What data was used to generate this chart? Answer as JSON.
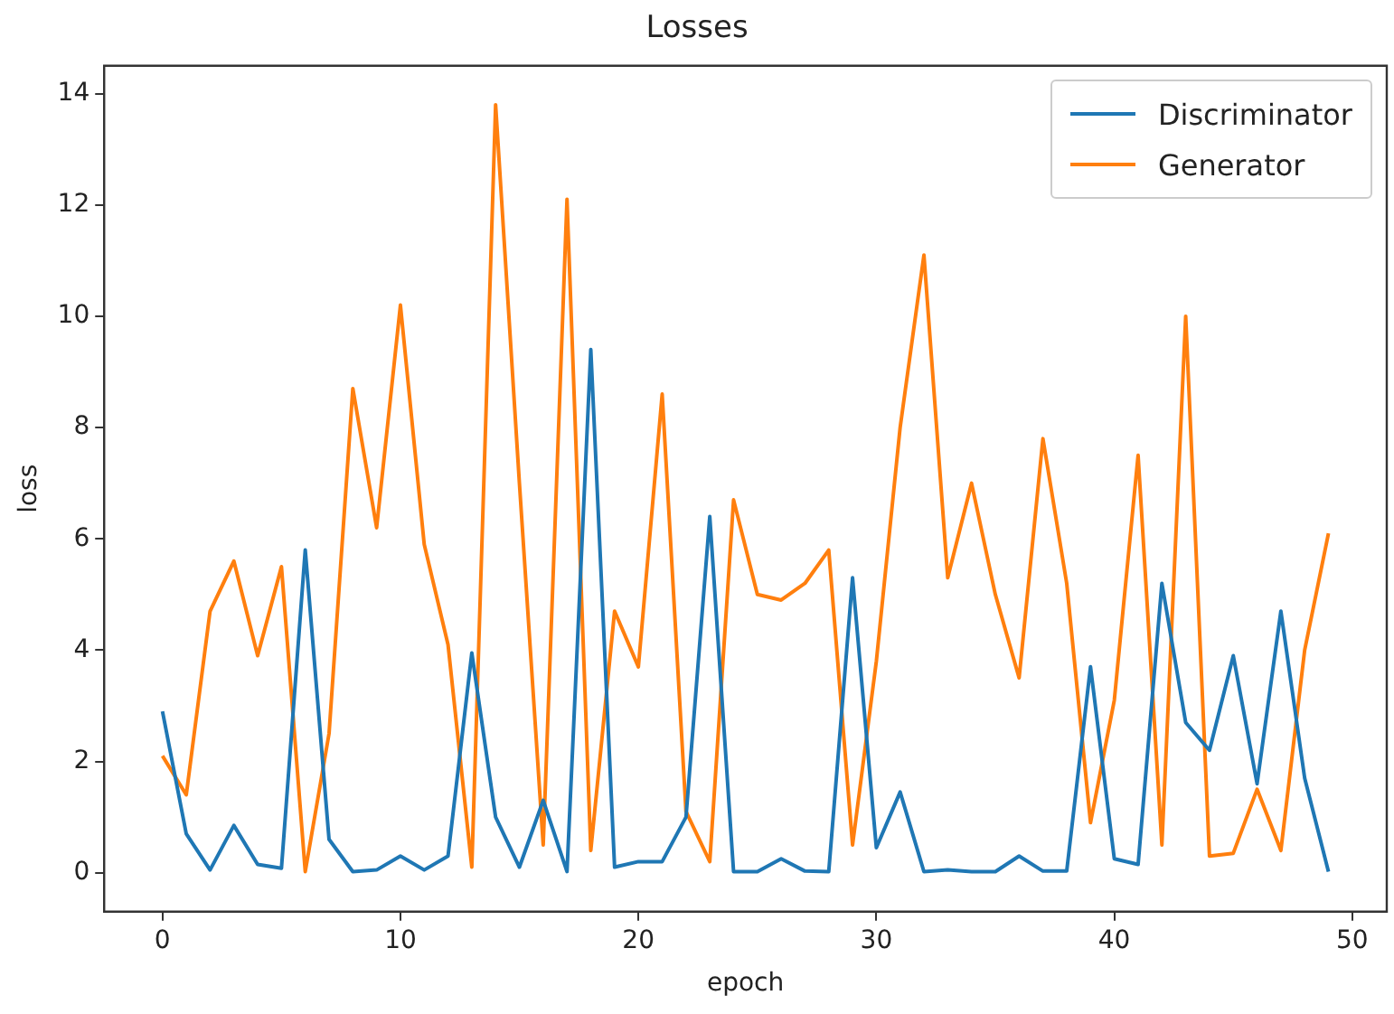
{
  "chart_data": {
    "type": "line",
    "title": "Losses",
    "xlabel": "epoch",
    "ylabel": "loss",
    "x": [
      0,
      1,
      2,
      3,
      4,
      5,
      6,
      7,
      8,
      9,
      10,
      11,
      12,
      13,
      14,
      15,
      16,
      17,
      18,
      19,
      20,
      21,
      22,
      23,
      24,
      25,
      26,
      27,
      28,
      29,
      30,
      31,
      32,
      33,
      34,
      35,
      36,
      37,
      38,
      39,
      40,
      41,
      42,
      43,
      44,
      45,
      46,
      47,
      48,
      49
    ],
    "series": [
      {
        "name": "Discriminator",
        "color": "#1f77b4",
        "values": [
          2.9,
          0.7,
          0.05,
          0.85,
          0.15,
          0.08,
          5.8,
          0.6,
          0.02,
          0.05,
          0.3,
          0.05,
          0.3,
          3.95,
          1.0,
          0.1,
          1.3,
          0.02,
          9.4,
          0.1,
          0.2,
          0.2,
          1.0,
          6.4,
          0.02,
          0.02,
          0.25,
          0.03,
          0.02,
          5.3,
          0.45,
          1.45,
          0.02,
          0.05,
          0.02,
          0.02,
          0.3,
          0.03,
          0.03,
          3.7,
          0.25,
          0.15,
          5.2,
          2.7,
          2.2,
          3.9,
          1.6,
          4.7,
          1.7,
          0.02
        ]
      },
      {
        "name": "Generator",
        "color": "#ff7f0e",
        "values": [
          2.1,
          1.4,
          4.7,
          5.6,
          3.9,
          5.5,
          0.02,
          2.5,
          8.7,
          6.2,
          10.2,
          5.9,
          4.1,
          0.1,
          13.8,
          7.0,
          0.5,
          12.1,
          0.4,
          4.7,
          3.7,
          8.6,
          1.1,
          0.2,
          6.7,
          5.0,
          4.9,
          5.2,
          5.8,
          0.5,
          3.8,
          8.0,
          11.1,
          5.3,
          7.0,
          5.0,
          3.5,
          7.8,
          5.2,
          0.9,
          3.1,
          7.5,
          0.5,
          10.0,
          0.3,
          0.35,
          1.5,
          0.4,
          4.0,
          6.1
        ]
      }
    ],
    "xlim": [
      -2.45,
      51.45
    ],
    "xticks": [
      0,
      10,
      20,
      30,
      40,
      50
    ],
    "ylim": [
      -0.7,
      14.5
    ],
    "yticks": [
      0,
      2,
      4,
      6,
      8,
      10,
      12,
      14
    ],
    "grid": false,
    "legend": "top right",
    "marker": "none",
    "line_style": "solid"
  }
}
